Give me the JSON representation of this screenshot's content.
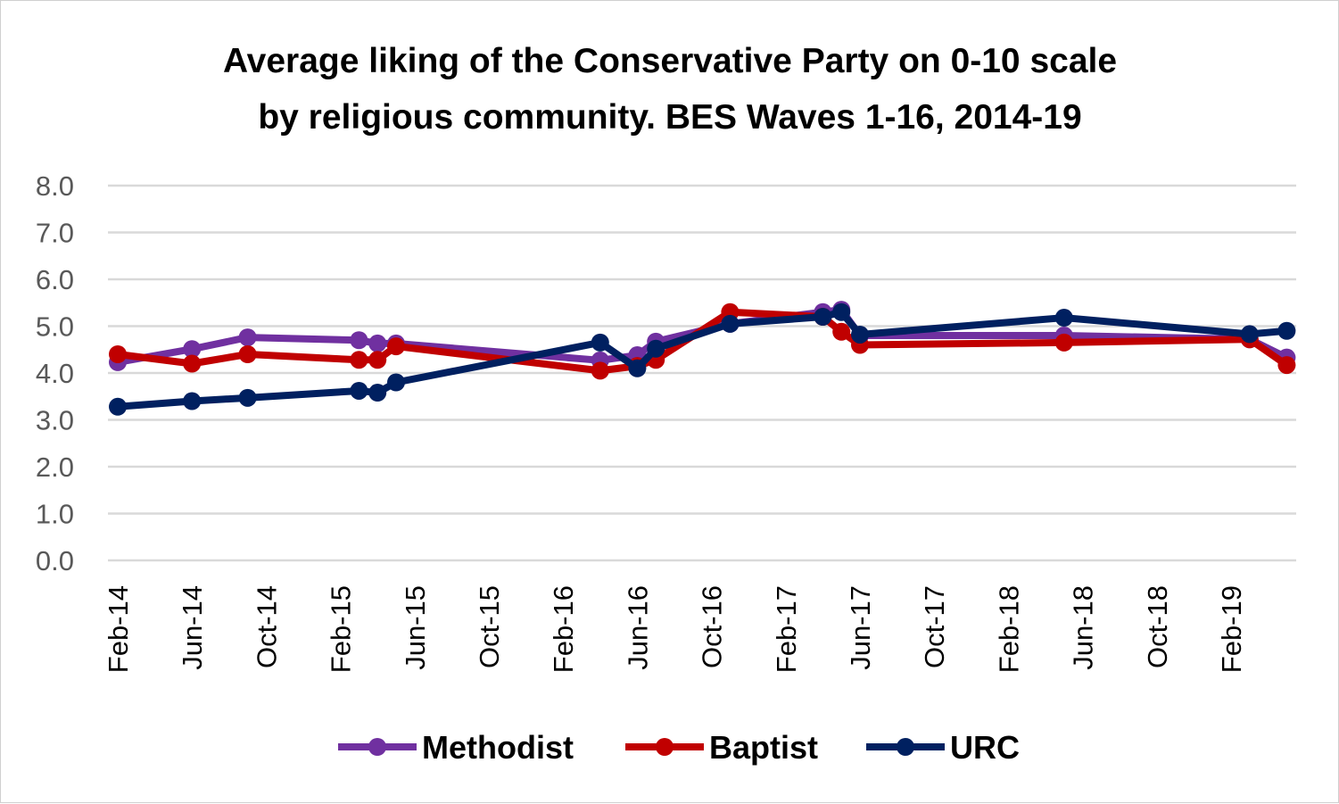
{
  "chart_data": {
    "type": "line",
    "title": [
      "Average liking of the Conservative Party on 0-10 scale",
      "by religious community. BES Waves 1-16, 2014-19"
    ],
    "xlabel": "",
    "ylabel": "",
    "ylim": [
      0,
      8
    ],
    "yticks": [
      "0.0",
      "1.0",
      "2.0",
      "3.0",
      "4.0",
      "5.0",
      "6.0",
      "7.0",
      "8.0"
    ],
    "xtick_labels": [
      "Feb-14",
      "Jun-14",
      "Oct-14",
      "Feb-15",
      "Jun-15",
      "Oct-15",
      "Feb-16",
      "Jun-16",
      "Oct-16",
      "Feb-17",
      "Jun-17",
      "Oct-17",
      "Feb-18",
      "Jun-18",
      "Oct-18",
      "Feb-19"
    ],
    "x_months_since_feb14": [
      0,
      4,
      7,
      13,
      14,
      15,
      26,
      28,
      29,
      33,
      38,
      39,
      40,
      51,
      61,
      63
    ],
    "x_dates": [
      "Feb-14",
      "Jun-14",
      "Sep-14",
      "Mar-15",
      "Apr-15",
      "May-15",
      "Apr-16",
      "Jun-16",
      "Jul-16",
      "Nov-16",
      "Apr-17",
      "May-17",
      "Jun-17",
      "May-18",
      "Mar-19",
      "May-19"
    ],
    "grid": true,
    "legend_position": "bottom",
    "series": [
      {
        "name": "Methodist",
        "color": "#7030A0",
        "values": [
          4.23,
          4.51,
          4.76,
          4.7,
          4.63,
          4.63,
          4.27,
          4.38,
          4.67,
          5.05,
          5.3,
          5.35,
          4.8,
          4.8,
          4.72,
          4.33
        ]
      },
      {
        "name": "Baptist",
        "color": "#C00000",
        "values": [
          4.4,
          4.2,
          4.4,
          4.28,
          4.28,
          4.57,
          4.05,
          4.15,
          4.28,
          5.3,
          5.2,
          4.88,
          4.6,
          4.65,
          4.72,
          4.17
        ]
      },
      {
        "name": "URC",
        "color": "#002060",
        "values": [
          3.28,
          3.4,
          3.47,
          3.62,
          3.58,
          3.8,
          4.65,
          4.1,
          4.52,
          5.05,
          5.2,
          5.3,
          4.82,
          5.18,
          4.83,
          4.9
        ]
      }
    ]
  }
}
